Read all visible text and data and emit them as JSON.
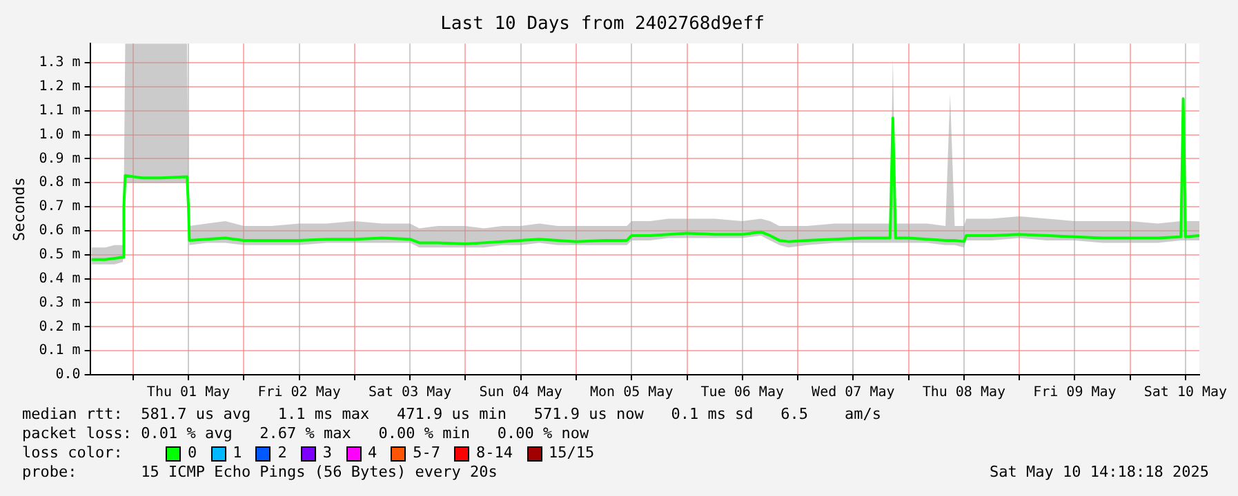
{
  "chart_data": {
    "type": "line",
    "title": "Last 10 Days from 2402768d9eff",
    "ylabel": "Seconds",
    "legend_title": "loss color:",
    "legend": "bottom",
    "grid": true,
    "marker": "none",
    "line_style": "solid",
    "xlim": [
      "2025-04-30T14:42",
      "2025-05-10T15:00"
    ],
    "xticks": [
      {
        "value": "2025-05-01T00:00",
        "label": null
      },
      {
        "value": "2025-05-01T12:00",
        "label": "Thu 01 May"
      },
      {
        "value": "2025-05-02T00:00",
        "label": null
      },
      {
        "value": "2025-05-02T12:00",
        "label": "Fri 02 May"
      },
      {
        "value": "2025-05-03T00:00",
        "label": null
      },
      {
        "value": "2025-05-03T12:00",
        "label": "Sat 03 May"
      },
      {
        "value": "2025-05-04T00:00",
        "label": null
      },
      {
        "value": "2025-05-04T12:00",
        "label": "Sun 04 May"
      },
      {
        "value": "2025-05-05T00:00",
        "label": null
      },
      {
        "value": "2025-05-05T12:00",
        "label": "Mon 05 May"
      },
      {
        "value": "2025-05-06T00:00",
        "label": null
      },
      {
        "value": "2025-05-06T12:00",
        "label": "Tue 06 May"
      },
      {
        "value": "2025-05-07T00:00",
        "label": null
      },
      {
        "value": "2025-05-07T12:00",
        "label": "Wed 07 May"
      },
      {
        "value": "2025-05-08T00:00",
        "label": null
      },
      {
        "value": "2025-05-08T12:00",
        "label": "Thu 08 May"
      },
      {
        "value": "2025-05-09T00:00",
        "label": null
      },
      {
        "value": "2025-05-09T12:00",
        "label": "Fri 09 May"
      },
      {
        "value": "2025-05-10T00:00",
        "label": null
      },
      {
        "value": "2025-05-10T12:00",
        "label": "Sat 10 May"
      }
    ],
    "ylim": [
      0,
      1.38
    ],
    "yticks": [
      {
        "value": 0,
        "label": "0.0"
      },
      {
        "value": 0.1,
        "label": "0.1 m"
      },
      {
        "value": 0.2,
        "label": "0.2 m"
      },
      {
        "value": 0.3,
        "label": "0.3 m"
      },
      {
        "value": 0.4,
        "label": "0.4 m"
      },
      {
        "value": 0.5,
        "label": "0.5 m"
      },
      {
        "value": 0.6,
        "label": "0.6 m"
      },
      {
        "value": 0.7,
        "label": "0.7 m"
      },
      {
        "value": 0.8,
        "label": "0.8 m"
      },
      {
        "value": 0.9,
        "label": "0.9 m"
      },
      {
        "value": 1.0,
        "label": "1.0 m"
      },
      {
        "value": 1.1,
        "label": "1.1 m"
      },
      {
        "value": 1.2,
        "label": "1.2 m"
      },
      {
        "value": 1.3,
        "label": "1.3 m"
      }
    ],
    "series": [
      {
        "name": "0",
        "color": "#00ff00",
        "x": [
          "2025-04-30T15:00",
          "2025-04-30T18:00",
          "2025-04-30T20:00",
          "2025-04-30T21:48",
          "2025-04-30T22:00",
          "2025-04-30T22:18",
          "2025-05-01T02:00",
          "2025-05-01T06:00",
          "2025-05-01T11:42",
          "2025-05-01T12:00",
          "2025-05-01T12:12",
          "2025-05-01T16:00",
          "2025-05-01T20:00",
          "2025-05-02T00:00",
          "2025-05-02T06:00",
          "2025-05-02T12:00",
          "2025-05-02T18:00",
          "2025-05-03T00:00",
          "2025-05-03T06:00",
          "2025-05-03T12:00",
          "2025-05-03T14:00",
          "2025-05-03T18:00",
          "2025-05-04T00:00",
          "2025-05-04T04:00",
          "2025-05-04T08:00",
          "2025-05-04T12:00",
          "2025-05-04T16:00",
          "2025-05-04T20:00",
          "2025-05-05T00:00",
          "2025-05-05T06:00",
          "2025-05-05T11:00",
          "2025-05-05T12:00",
          "2025-05-05T16:00",
          "2025-05-05T20:00",
          "2025-05-06T00:00",
          "2025-05-06T06:00",
          "2025-05-06T12:00",
          "2025-05-06T16:00",
          "2025-05-06T18:00",
          "2025-05-06T20:00",
          "2025-05-06T22:00",
          "2025-05-07T02:00",
          "2025-05-07T08:00",
          "2025-05-07T14:00",
          "2025-05-07T20:00",
          "2025-05-07T20:36",
          "2025-05-07T21:12",
          "2025-05-08T00:00",
          "2025-05-08T04:00",
          "2025-05-08T08:00",
          "2025-05-08T09:00",
          "2025-05-08T10:00",
          "2025-05-08T12:00",
          "2025-05-08T12:30",
          "2025-05-08T18:00",
          "2025-05-09T00:00",
          "2025-05-09T06:00",
          "2025-05-09T12:00",
          "2025-05-09T18:00",
          "2025-05-10T00:00",
          "2025-05-10T06:00",
          "2025-05-10T11:00",
          "2025-05-10T11:30",
          "2025-05-10T12:00",
          "2025-05-10T15:00"
        ],
        "values": [
          0.48,
          0.48,
          0.485,
          0.49,
          0.7,
          0.83,
          0.82,
          0.82,
          0.825,
          0.7,
          0.56,
          0.565,
          0.57,
          0.56,
          0.56,
          0.56,
          0.565,
          0.565,
          0.57,
          0.565,
          0.55,
          0.55,
          0.545,
          0.55,
          0.555,
          0.56,
          0.565,
          0.56,
          0.555,
          0.56,
          0.56,
          0.58,
          0.58,
          0.585,
          0.59,
          0.585,
          0.585,
          0.595,
          0.58,
          0.56,
          0.555,
          0.56,
          0.565,
          0.57,
          0.57,
          1.07,
          0.57,
          0.57,
          0.565,
          0.56,
          0.56,
          0.56,
          0.555,
          0.58,
          0.58,
          0.585,
          0.58,
          0.575,
          0.57,
          0.57,
          0.57,
          0.575,
          1.15,
          0.575,
          0.58
        ],
        "upper": [
          0.53,
          0.53,
          0.54,
          0.54,
          0.75,
          1.38,
          1.38,
          1.38,
          1.38,
          0.75,
          0.62,
          0.63,
          0.64,
          0.62,
          0.62,
          0.63,
          0.63,
          0.64,
          0.63,
          0.63,
          0.61,
          0.62,
          0.62,
          0.61,
          0.62,
          0.62,
          0.63,
          0.62,
          0.62,
          0.62,
          0.62,
          0.64,
          0.64,
          0.65,
          0.65,
          0.65,
          0.64,
          0.65,
          0.64,
          0.62,
          0.62,
          0.62,
          0.63,
          0.63,
          0.63,
          1.32,
          0.63,
          0.63,
          0.63,
          0.62,
          1.17,
          0.62,
          0.62,
          0.65,
          0.65,
          0.66,
          0.65,
          0.64,
          0.64,
          0.64,
          0.63,
          0.64,
          1.16,
          0.64,
          0.64
        ],
        "lower": [
          0.46,
          0.46,
          0.46,
          0.47,
          0.68,
          0.8,
          0.8,
          0.8,
          0.8,
          0.68,
          0.54,
          0.55,
          0.55,
          0.54,
          0.54,
          0.54,
          0.55,
          0.55,
          0.55,
          0.55,
          0.53,
          0.53,
          0.53,
          0.53,
          0.54,
          0.54,
          0.55,
          0.54,
          0.54,
          0.54,
          0.54,
          0.56,
          0.56,
          0.57,
          0.57,
          0.57,
          0.57,
          0.58,
          0.56,
          0.54,
          0.53,
          0.54,
          0.55,
          0.55,
          0.55,
          0.55,
          0.55,
          0.55,
          0.55,
          0.54,
          0.54,
          0.54,
          0.53,
          0.56,
          0.56,
          0.57,
          0.56,
          0.56,
          0.55,
          0.55,
          0.55,
          0.56,
          0.56,
          0.56,
          0.56
        ]
      },
      {
        "name": "1",
        "color": "#00b8ff"
      },
      {
        "name": "2",
        "color": "#0059ff"
      },
      {
        "name": "3",
        "color": "#7e00ff"
      },
      {
        "name": "4",
        "color": "#ff00ff"
      },
      {
        "name": "5-7",
        "color": "#ff5500"
      },
      {
        "name": "8-14",
        "color": "#ff0000"
      },
      {
        "name": "15/15",
        "color": "#a10000"
      }
    ],
    "annotations": [
      "median rtt:  581.7 us avg   1.1 ms max   471.9 us min   571.9 us now   0.1 ms sd   6.5    am/s",
      "packet loss: 0.01 % avg   2.67 % max   0.00 % min   0.00 % now",
      "probe:       15 ICMP Echo Pings (56 Bytes) every 20s",
      "Sat May 10 14:18:18 2025"
    ]
  }
}
